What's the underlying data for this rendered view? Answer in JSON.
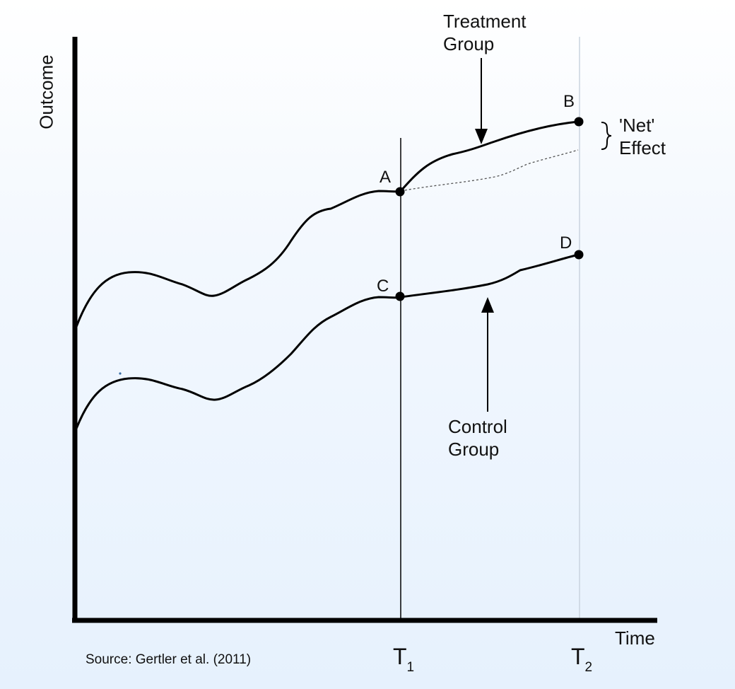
{
  "axes": {
    "y_label": "Outcome",
    "x_label": "Time",
    "ticks": [
      {
        "base": "T",
        "sub": "1"
      },
      {
        "base": "T",
        "sub": "2"
      }
    ]
  },
  "groups": {
    "treatment": {
      "line1": "Treatment",
      "line2": "Group"
    },
    "control": {
      "line1": "Control",
      "line2": "Group"
    }
  },
  "net_effect": {
    "line1": "'Net'",
    "line2": "Effect"
  },
  "points": {
    "a": "A",
    "b": "B",
    "c": "C",
    "d": "D"
  },
  "source": "Source: Gertler et al. (2011)",
  "colors": {
    "line": "#000000",
    "counterfactual": "#555555",
    "t2_guide": "#c9d3df"
  }
}
